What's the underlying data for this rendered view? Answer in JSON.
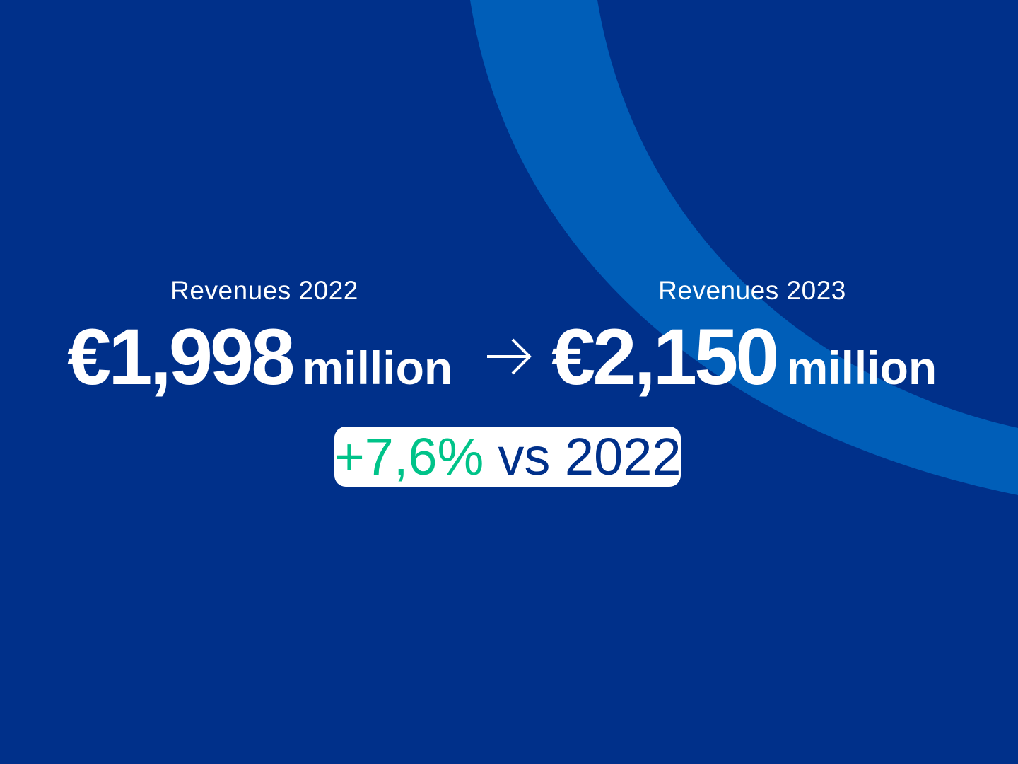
{
  "colors": {
    "background": "#00308A",
    "arc": "#005EB8",
    "growth": "#00C389",
    "text": "#FFFFFF"
  },
  "left": {
    "label": "Revenues 2022",
    "amount": "€1,998",
    "unit": "million"
  },
  "right": {
    "label": "Revenues 2023",
    "amount": "€2,150",
    "unit": "million"
  },
  "arrow_icon": "arrow-right-icon",
  "badge": {
    "change": "+7,6%",
    "comparison": "vs 2022"
  }
}
